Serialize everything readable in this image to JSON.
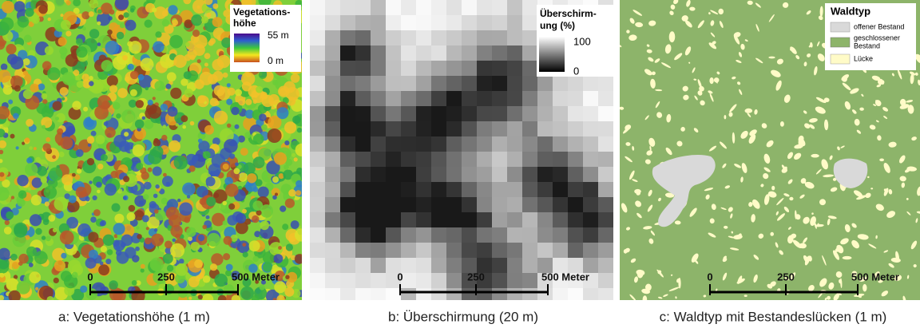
{
  "panels": [
    {
      "legend": {
        "title_lines": [
          "Vegetations-",
          "höhe"
        ],
        "labels": [
          "55 m",
          "0 m"
        ]
      },
      "scale_bar": {
        "labels": [
          "0",
          "250",
          "500 Meter"
        ]
      },
      "caption": "a: Vegetationshöhe (1 m)"
    },
    {
      "legend": {
        "title_lines": [
          "Überschirm-",
          "ung (%)"
        ],
        "labels": [
          "100",
          "0"
        ]
      },
      "scale_bar": {
        "labels": [
          "0",
          "250",
          "500 Meter"
        ]
      },
      "caption": "b: Überschirmung (20 m)"
    },
    {
      "legend": {
        "title_lines": [
          "Waldtyp"
        ],
        "items": [
          [
            "offener Bestand"
          ],
          [
            "geschlossener",
            "Bestand"
          ],
          [
            "Lücke"
          ]
        ]
      },
      "scale_bar": {
        "labels": [
          "0",
          "250",
          "500 Meter"
        ]
      },
      "caption": "c: Waldtyp mit Bestandeslücken (1 m)"
    }
  ]
}
